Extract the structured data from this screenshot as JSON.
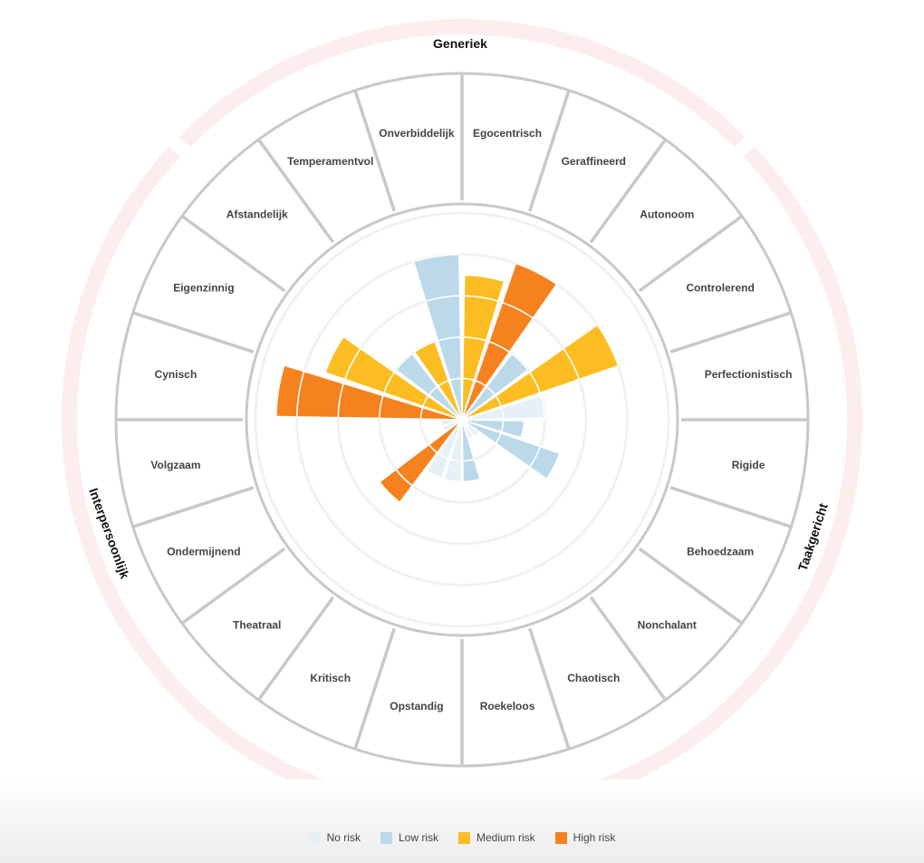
{
  "chart_data": {
    "type": "radial-bar",
    "title": "",
    "groups": [
      {
        "name": "Generiek",
        "start_index": 22,
        "end_index": 1
      },
      {
        "name": "Taakgericht",
        "start_index": 2,
        "end_index": 11
      },
      {
        "name": "Interpersoonlijk",
        "start_index": 12,
        "end_index": 21
      }
    ],
    "levels": [
      "No risk",
      "Low risk",
      "Medium risk",
      "High risk"
    ],
    "colors": {
      "No risk": "#e6f0f6",
      "Low risk": "#bcd9ea",
      "Medium risk": "#fbbd21",
      "High risk": "#f5821f",
      "ring": "#fdeeee",
      "divider": "#cbc6cb"
    },
    "categories": [
      "Egocentrisch",
      "Geraffineerd",
      "Autonoom",
      "Controlerend",
      "Perfectionistisch",
      "Rigide",
      "Behoedzaam",
      "Nonchalant",
      "Chaotisch",
      "Roekeloos",
      "Opstandig",
      "Kritisch",
      "Theatraal",
      "Ondermijnend",
      "Volgzaam",
      "Cynisch",
      "Eigenzinnig",
      "Afstandelijk",
      "Temperamentvol",
      "Onverbiddelijk"
    ],
    "values": [
      3.5,
      4,
      2,
      4,
      2,
      1.5,
      2.5,
      0.5,
      0.5,
      1.5,
      1.5,
      1.5,
      2.5,
      0.5,
      0.5,
      4.5,
      3.5,
      2,
      2,
      4
    ],
    "risk": [
      "Medium risk",
      "High risk",
      "Low risk",
      "Medium risk",
      "No risk",
      "Low risk",
      "Low risk",
      "No risk",
      "No risk",
      "Low risk",
      "No risk",
      "No risk",
      "High risk",
      "No risk",
      "No risk",
      "High risk",
      "Medium risk",
      "Low risk",
      "Medium risk",
      "Low risk"
    ],
    "rlim": [
      0,
      5
    ]
  }
}
